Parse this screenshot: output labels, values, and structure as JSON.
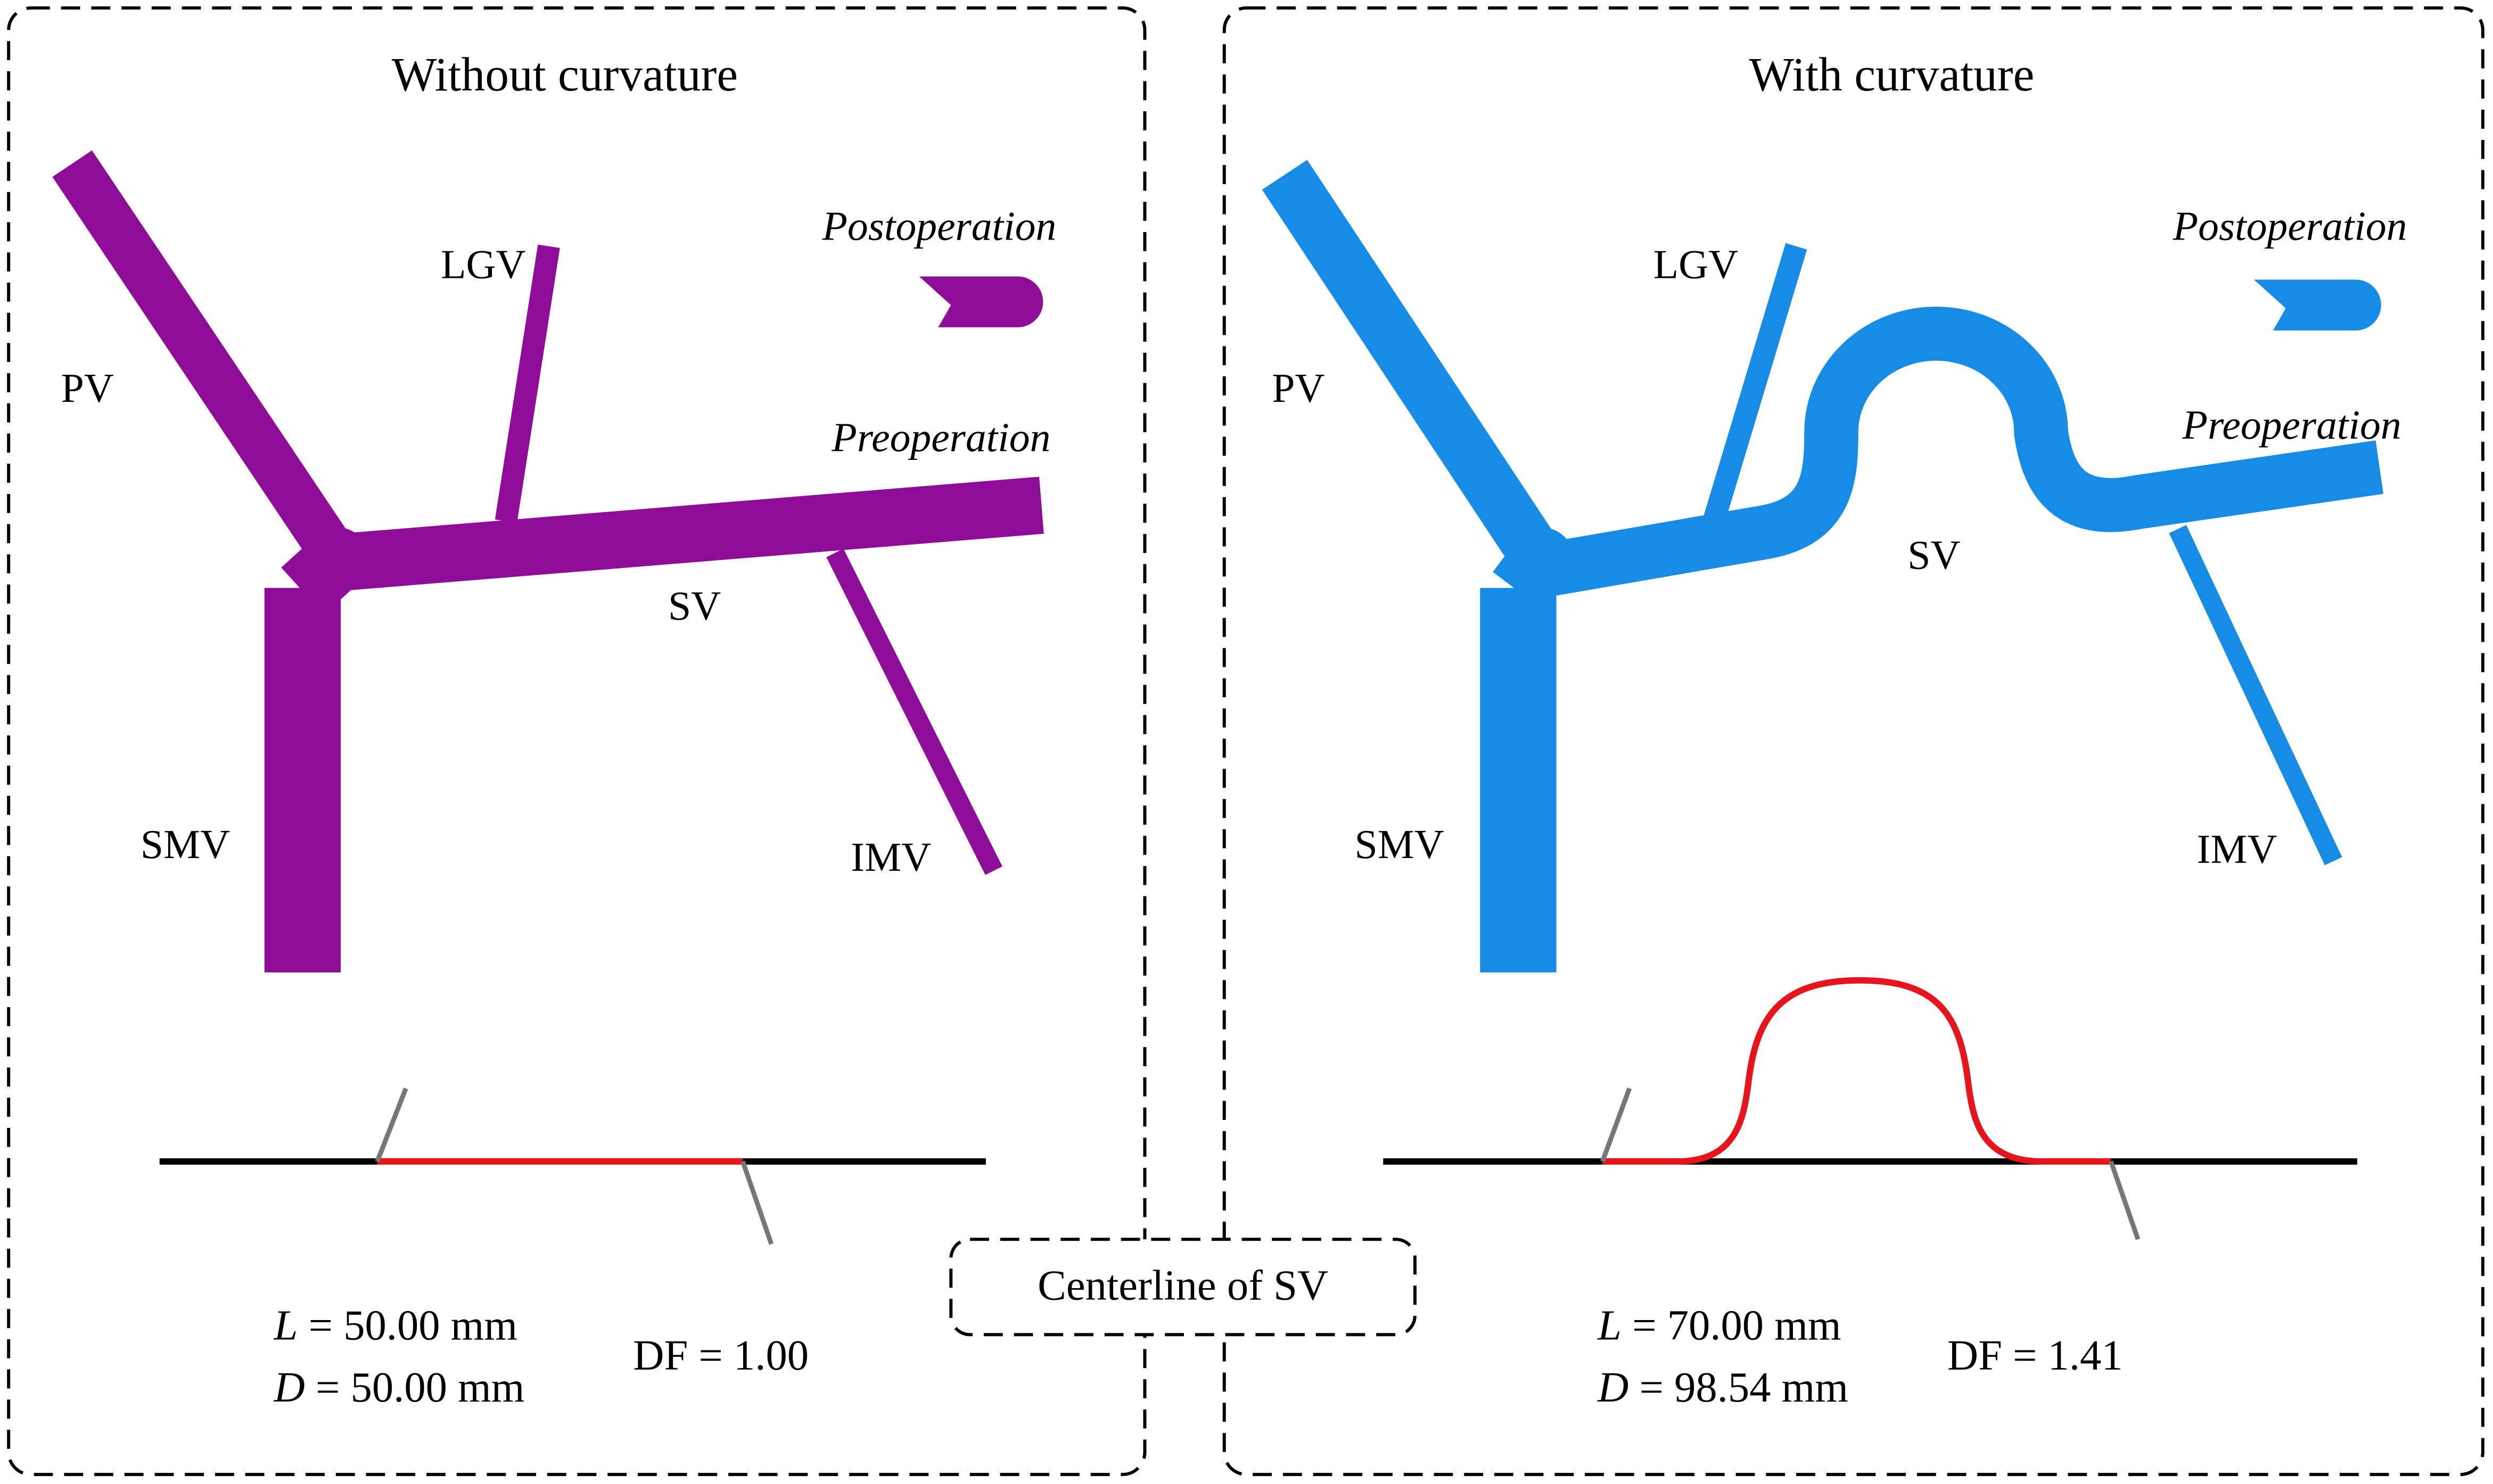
{
  "panels": [
    {
      "title": "Without curvature",
      "vessels": {
        "pv": "PV",
        "lgv": "LGV",
        "sv": "SV",
        "smv": "SMV",
        "imv": "IMV"
      },
      "states": {
        "post": "Postoperation",
        "pre": "Preoperation"
      },
      "metrics": [
        {
          "symbol": "L",
          "text": "= 50.00 mm"
        },
        {
          "symbol": "D",
          "text": "= 50.00 mm"
        }
      ],
      "df": "DF = 1.00"
    },
    {
      "title": "With curvature",
      "vessels": {
        "pv": "PV",
        "lgv": "LGV",
        "sv": "SV",
        "smv": "SMV",
        "imv": "IMV"
      },
      "states": {
        "post": "Postoperation",
        "pre": "Preoperation"
      },
      "metrics": [
        {
          "symbol": "L",
          "text": "= 70.00 mm"
        },
        {
          "symbol": "D",
          "text": "= 98.54 mm"
        }
      ],
      "df": "DF = 1.41"
    }
  ],
  "callout": "Centerline of SV"
}
